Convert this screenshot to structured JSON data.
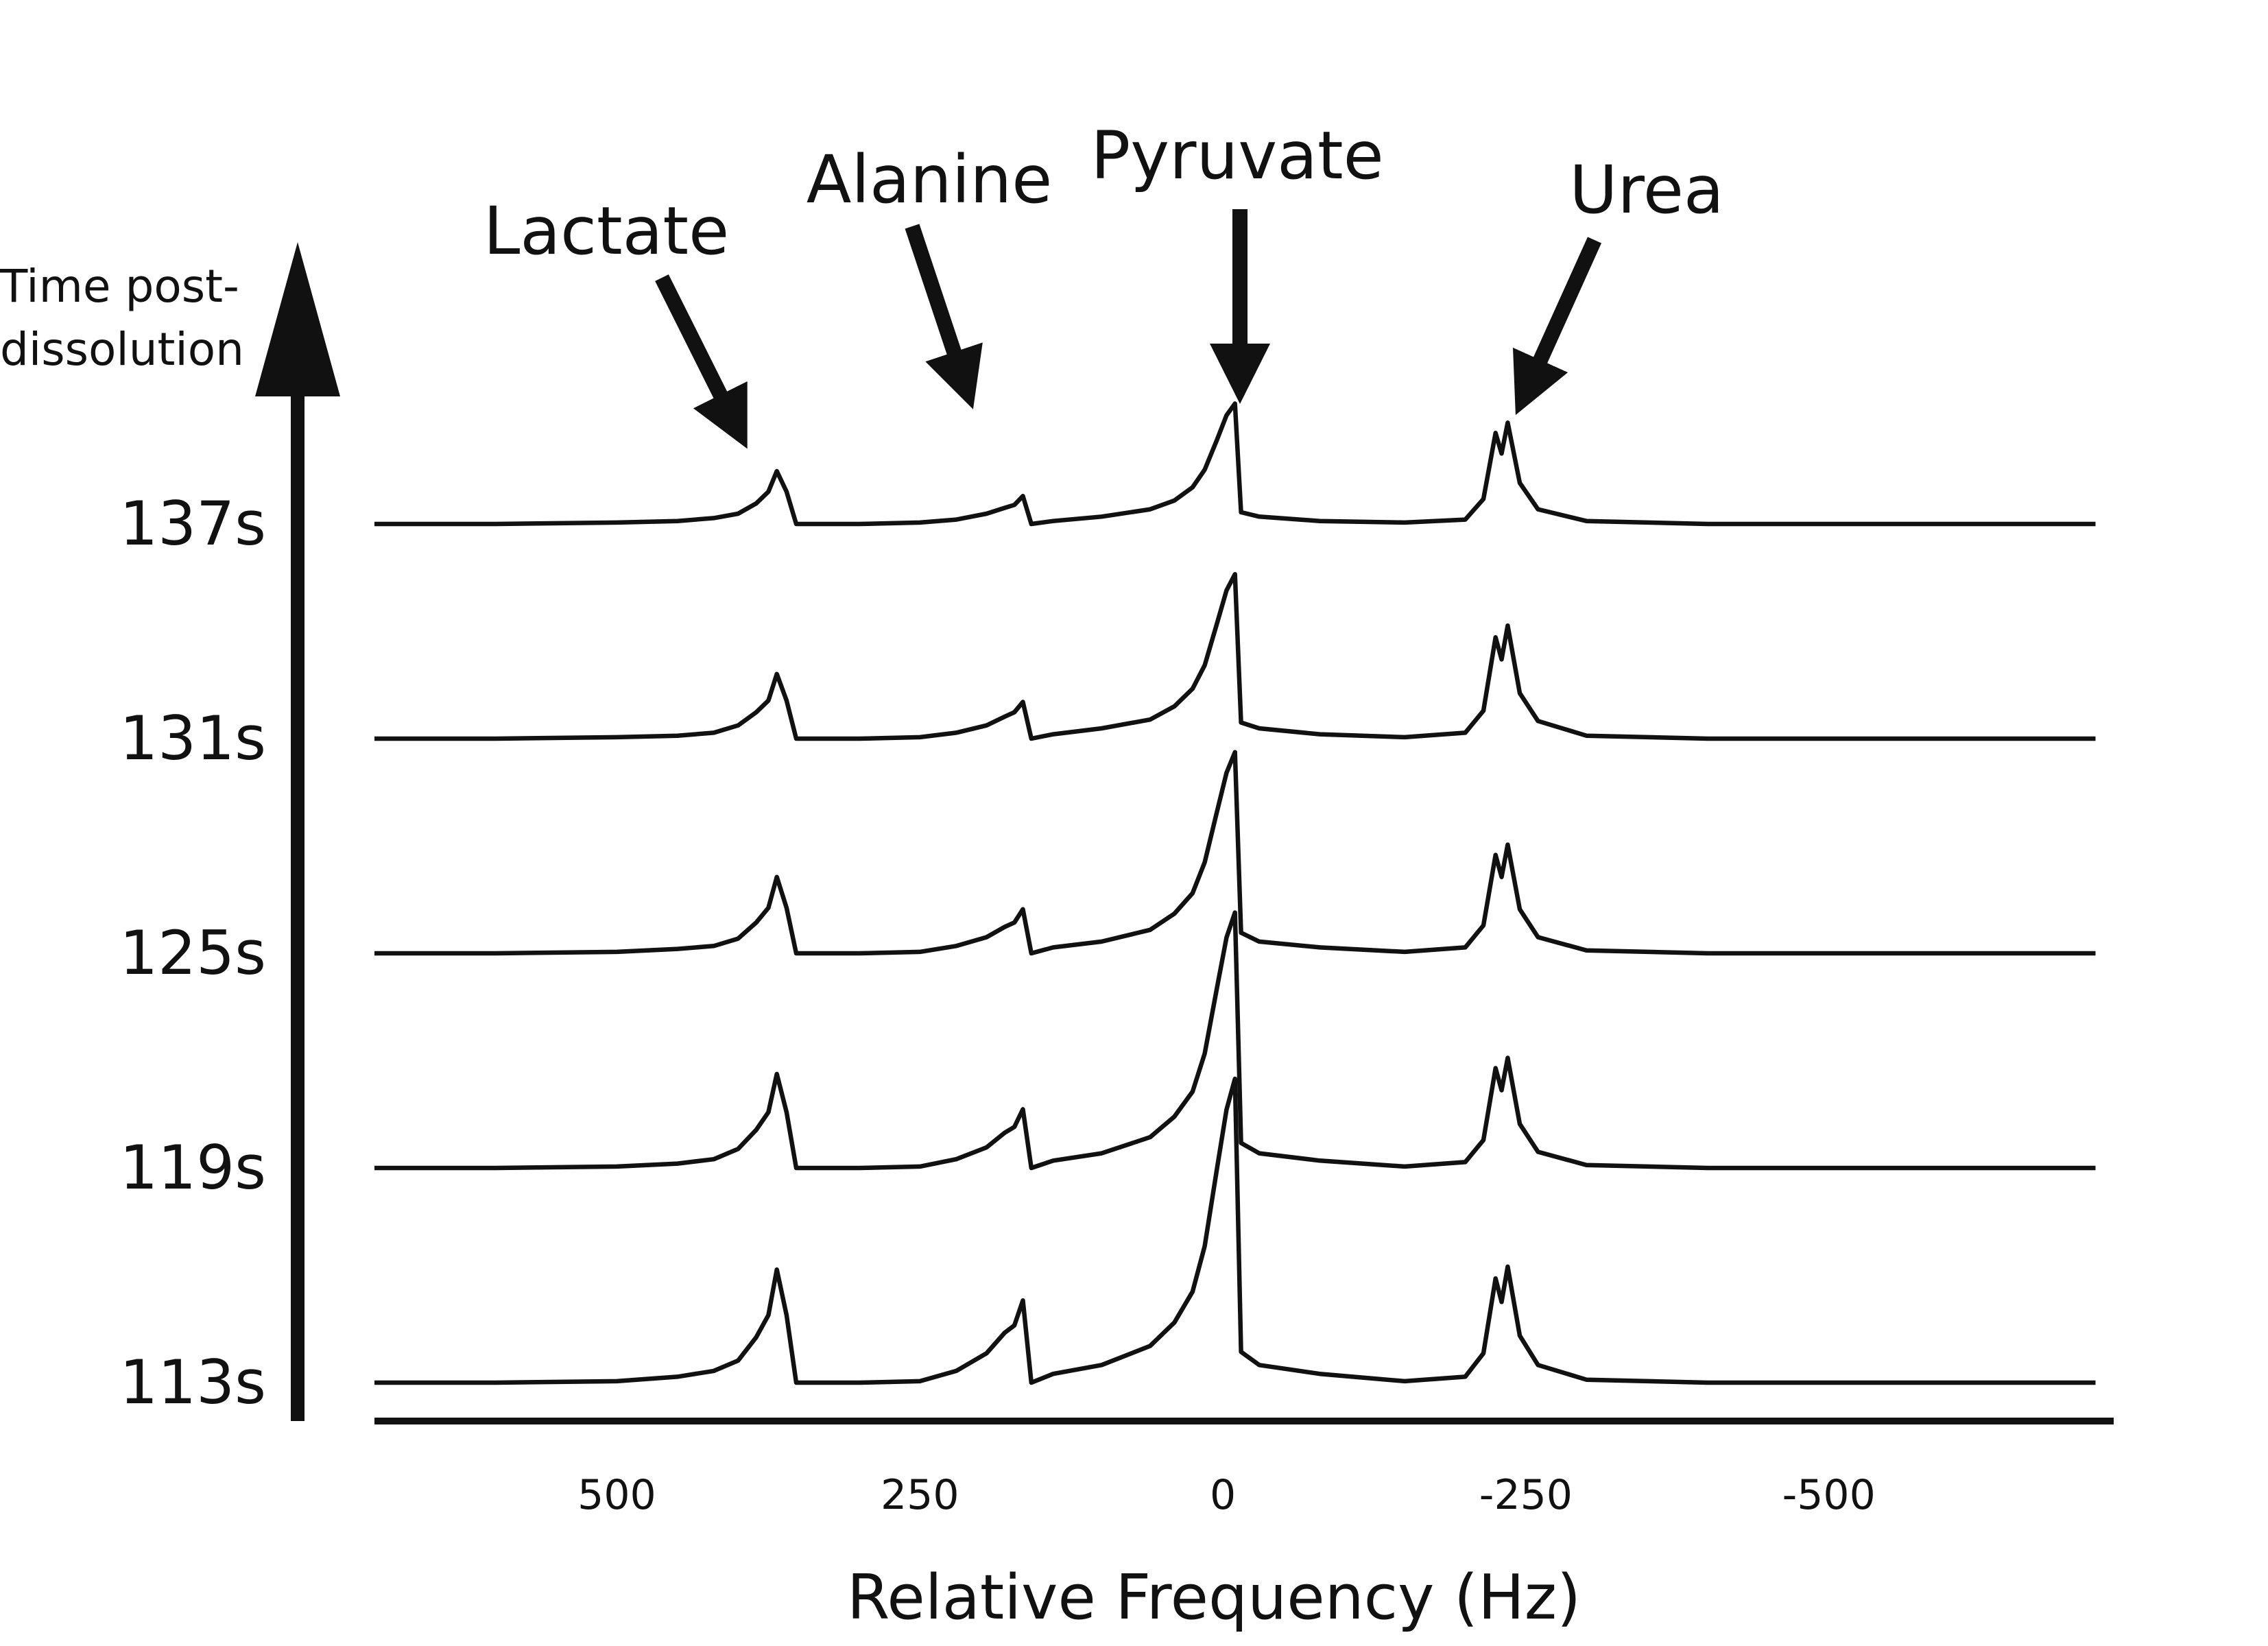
{
  "chart_data": {
    "type": "line",
    "xlabel": "Relative Frequency (Hz)",
    "ylabel": [
      "Time post-",
      "dissolution"
    ],
    "annotations": [
      "Lactate",
      "Alanine",
      "Pyruvate",
      "Urea"
    ],
    "xlim": [
      700,
      -735
    ],
    "xticks": [
      500,
      250,
      0,
      -250,
      -500
    ],
    "color": "#111111",
    "x": [
      700,
      600,
      500,
      450,
      420,
      400,
      385,
      375,
      368,
      360,
      352,
      300,
      250,
      220,
      195,
      180,
      172,
      165,
      158,
      140,
      100,
      60,
      40,
      25,
      15,
      5,
      -3,
      -10,
      -15,
      -30,
      -80,
      -150,
      -200,
      -215,
      -225,
      -230,
      -235,
      -245,
      -260,
      -300,
      -400,
      -500,
      -600,
      -720
    ],
    "series": [
      {
        "name": "113s",
        "values": [
          0,
          0,
          1,
          4,
          8,
          15,
          31,
          46,
          77,
          46,
          0,
          0,
          1,
          8,
          20,
          34,
          39,
          56,
          0,
          6,
          12,
          25,
          41,
          62,
          93,
          145,
          186,
          207,
          21,
          12,
          6,
          1,
          4,
          20,
          71,
          55,
          79,
          32,
          12,
          2,
          0,
          0,
          0,
          0
        ]
      },
      {
        "name": "119s",
        "values": [
          0,
          0,
          1,
          3,
          6,
          13,
          26,
          38,
          64,
          38,
          0,
          0,
          1,
          6,
          14,
          24,
          28,
          40,
          0,
          5,
          10,
          21,
          35,
          52,
          78,
          122,
          157,
          174,
          17,
          10,
          5,
          1,
          4,
          19,
          68,
          53,
          75,
          30,
          11,
          2,
          0,
          0,
          0,
          0
        ]
      },
      {
        "name": "125s",
        "values": [
          0,
          0,
          1,
          3,
          5,
          10,
          21,
          31,
          52,
          31,
          0,
          0,
          1,
          5,
          11,
          18,
          21,
          30,
          0,
          4,
          8,
          16,
          27,
          41,
          62,
          96,
          123,
          137,
          14,
          8,
          4,
          1,
          4,
          19,
          67,
          52,
          74,
          30,
          11,
          2,
          0,
          0,
          0,
          0
        ]
      },
      {
        "name": "131s",
        "values": [
          0,
          0,
          1,
          2,
          4,
          9,
          18,
          26,
          44,
          26,
          0,
          0,
          1,
          4,
          9,
          15,
          18,
          25,
          0,
          3,
          7,
          13,
          22,
          34,
          50,
          78,
          101,
          112,
          11,
          7,
          3,
          1,
          4,
          19,
          69,
          54,
          77,
          31,
          12,
          2,
          0,
          0,
          0,
          0
        ]
      },
      {
        "name": "137s",
        "values": [
          0,
          0,
          1,
          2,
          4,
          7,
          14,
          22,
          36,
          22,
          0,
          0,
          1,
          3,
          7,
          11,
          13,
          19,
          0,
          2,
          5,
          10,
          16,
          25,
          37,
          57,
          74,
          82,
          8,
          5,
          2,
          1,
          3,
          17,
          62,
          48,
          69,
          28,
          10,
          2,
          0,
          0,
          0,
          0
        ]
      }
    ]
  }
}
